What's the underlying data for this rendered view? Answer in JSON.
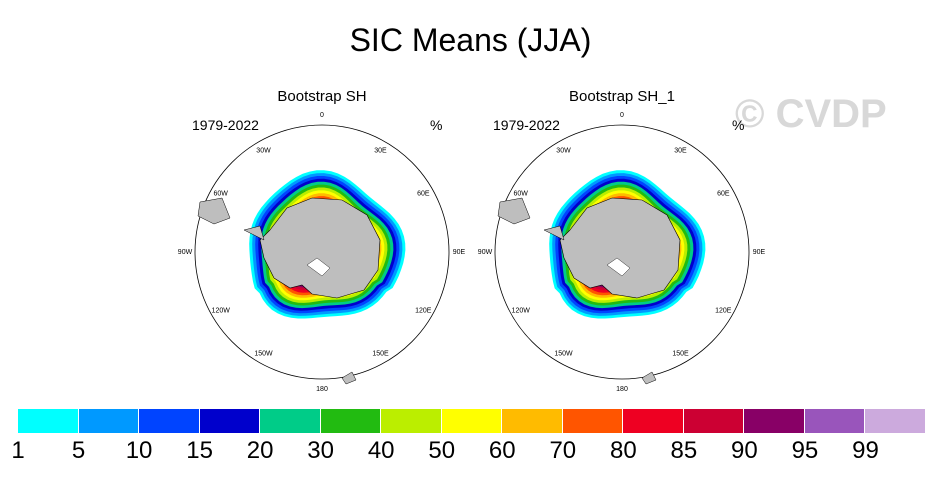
{
  "title": "SIC Means (JJA)",
  "watermark": "© CVDP",
  "panels": [
    {
      "name": "Bootstrap SH",
      "period": "1979-2022",
      "units": "%"
    },
    {
      "name": "Bootstrap SH_1",
      "period": "1979-2022",
      "units": "%"
    }
  ],
  "longitude_labels": [
    "0",
    "30E",
    "60E",
    "90E",
    "120E",
    "150E",
    "180",
    "150W",
    "120W",
    "90W",
    "60W",
    "30W"
  ],
  "colorbar": {
    "colors": [
      "#00ffff",
      "#0099ff",
      "#0044ff",
      "#0000cc",
      "#00cc88",
      "#22bb11",
      "#bbee00",
      "#ffff00",
      "#ffbb00",
      "#ff5500",
      "#ee0022",
      "#cc0033",
      "#880066",
      "#9955bb",
      "#ccaadd"
    ],
    "labels": [
      "1",
      "5",
      "10",
      "15",
      "20",
      "30",
      "40",
      "50",
      "60",
      "70",
      "80",
      "85",
      "90",
      "95",
      "99"
    ]
  },
  "colors": {
    "land": "#bebebe",
    "background": "#ffffff"
  }
}
